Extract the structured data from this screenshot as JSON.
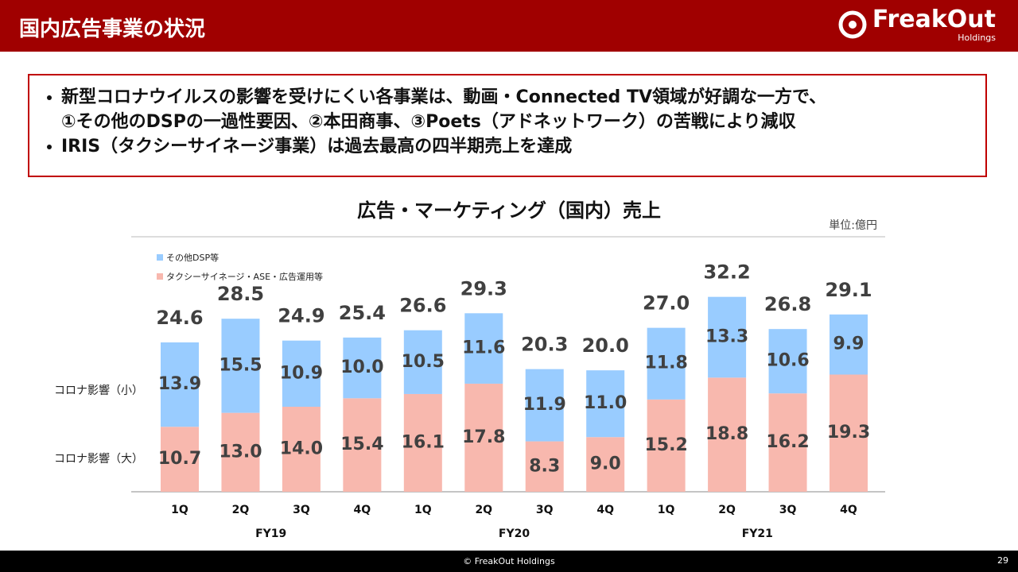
{
  "header": {
    "title": "国内広告事業の状況",
    "logo": "FreakOut",
    "logo_sub": "Holdings"
  },
  "bullets": [
    [
      "新型コロナウイルスの影響を受けにくい各事業は、動画・Connected TV領域が好調な一方で、",
      "①その他のDSPの一過性要因、②本田商事、③Poets（アドネットワーク）の苦戦により減収"
    ],
    [
      "IRIS（タクシーサイネージ事業）は過去最高の四半期売上を達成"
    ]
  ],
  "chart_data": {
    "type": "stacked_bar",
    "title": "広告・マーケティング（国内）売上",
    "unit": "単位:億円",
    "categories": [
      "1Q",
      "2Q",
      "3Q",
      "4Q",
      "1Q",
      "2Q",
      "3Q",
      "4Q",
      "1Q",
      "2Q",
      "3Q",
      "4Q"
    ],
    "x_groups": [
      "FY19",
      "FY20",
      "FY21"
    ],
    "series": [
      {
        "name": "タクシーサイネージ・ASE・広告運用等",
        "color": "#f8b8ae",
        "values": [
          10.7,
          13,
          14,
          15.4,
          16.1,
          17.8,
          8.3,
          9,
          15.2,
          18.8,
          16.2,
          19.3
        ],
        "value_labels": [
          "10.7",
          "13.0",
          "14.0",
          "15.4",
          "16.1",
          "17.8",
          "8.3",
          "9.0",
          "15.2",
          "18.8",
          "16.2",
          "19.3"
        ]
      },
      {
        "name": "その他DSP等",
        "color": "#99ccff",
        "values": [
          13.9,
          15.5,
          10.9,
          10,
          10.5,
          11.6,
          11.9,
          11,
          11.8,
          13.3,
          10.6,
          9.9
        ],
        "value_labels": [
          "13.9",
          "15.5",
          "10.9",
          "10.0",
          "10.5",
          "11.6",
          "11.9",
          "11.0",
          "11.8",
          "13.3",
          "10.6",
          "9.9"
        ]
      }
    ],
    "totals": [
      "24.6",
      "28.5",
      "24.9",
      "25.4",
      "26.6",
      "29.3",
      "20.3",
      "20.0",
      "27.0",
      "32.2",
      "26.8",
      "29.1"
    ],
    "side_labels": [
      "コロナ影響（小）",
      "コロナ影響（大）"
    ],
    "ylim": [
      0,
      42
    ]
  },
  "footer": {
    "copyright": "© FreakOut Holdings",
    "page": "29"
  }
}
